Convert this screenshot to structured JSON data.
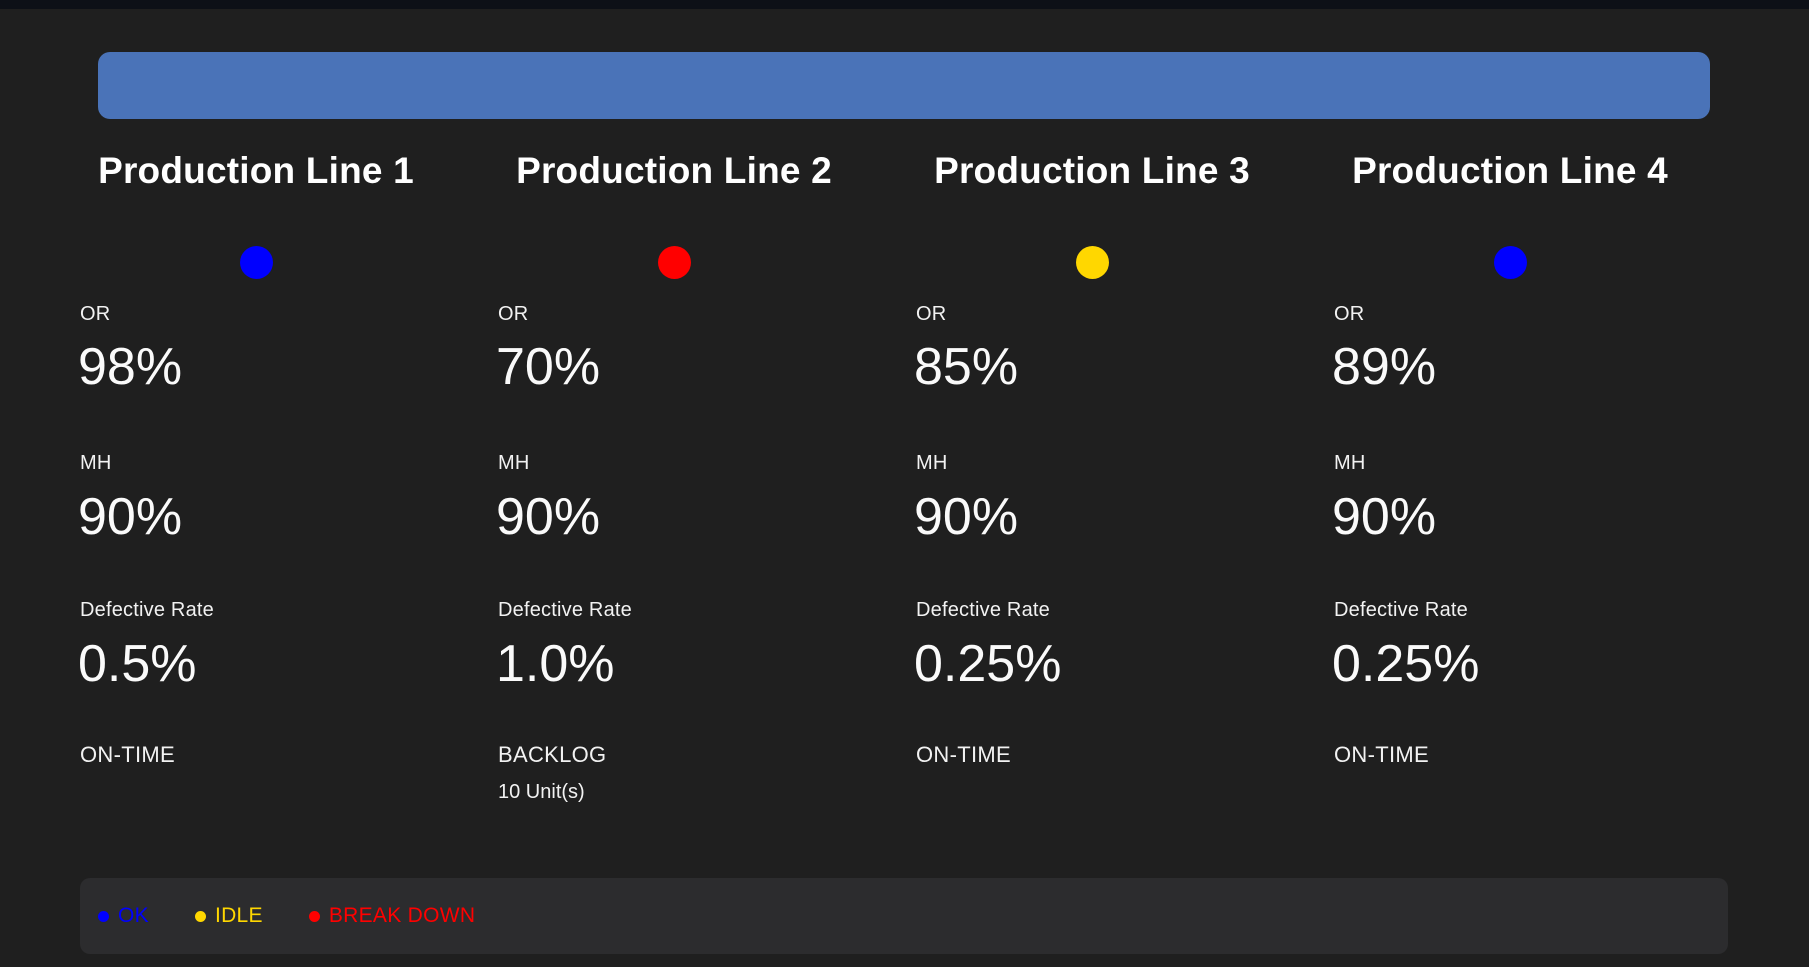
{
  "header": {
    "banner_color": "#4a73b8"
  },
  "kpi_labels": {
    "or": "OR",
    "mh": "MH",
    "defective": "Defective Rate"
  },
  "lines": [
    {
      "title": "Production Line 1",
      "status_color": "#0000ff",
      "or_value": "98%",
      "mh_value": "90%",
      "defective_value": "0.5%",
      "delivery_status": "ON-TIME",
      "backlog_units": ""
    },
    {
      "title": "Production Line 2",
      "status_color": "#ff0000",
      "or_value": "70%",
      "mh_value": "90%",
      "defective_value": "1.0%",
      "delivery_status": "BACKLOG",
      "backlog_units": "10 Unit(s)"
    },
    {
      "title": "Production Line 3",
      "status_color": "#ffd700",
      "or_value": "85%",
      "mh_value": "90%",
      "defective_value": "0.25%",
      "delivery_status": "ON-TIME",
      "backlog_units": ""
    },
    {
      "title": "Production Line 4",
      "status_color": "#0000ff",
      "or_value": "89%",
      "mh_value": "90%",
      "defective_value": "0.25%",
      "delivery_status": "ON-TIME",
      "backlog_units": ""
    }
  ],
  "legend": {
    "items": [
      {
        "label": "OK",
        "color": "#0000ff"
      },
      {
        "label": "IDLE",
        "color": "#ffd700"
      },
      {
        "label": "BREAK DOWN",
        "color": "#ff0000"
      }
    ]
  }
}
